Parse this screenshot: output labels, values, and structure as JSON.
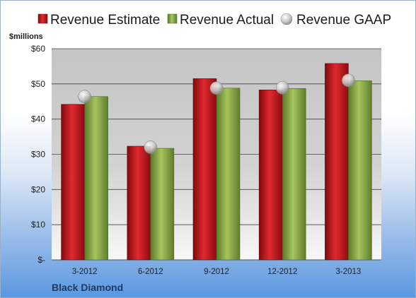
{
  "chart_data": {
    "type": "bar",
    "categories": [
      "3-2012",
      "6-2012",
      "9-2012",
      "12-2012",
      "3-2013"
    ],
    "series": [
      {
        "name": "Revenue Estimate",
        "kind": "bar",
        "color": "#c8141c",
        "values": [
          44.2,
          32.3,
          51.5,
          48.3,
          55.8
        ]
      },
      {
        "name": "Revenue Actual",
        "kind": "bar",
        "color": "#8fb04a",
        "values": [
          46.4,
          31.7,
          48.8,
          48.7,
          50.9
        ]
      },
      {
        "name": "Revenue GAAP",
        "kind": "marker",
        "color": "#c0c0c0",
        "values": [
          46.4,
          32.0,
          48.8,
          48.9,
          51.0
        ]
      }
    ],
    "ylabel": "$millions",
    "ylim": [
      0,
      60
    ],
    "yticks": [
      0,
      10,
      20,
      30,
      40,
      50,
      60
    ],
    "ytick_labels": [
      "$-",
      "$10",
      "$20",
      "$30",
      "$40",
      "$50",
      "$60"
    ],
    "grid": true,
    "legend_position": "top",
    "company": "Black Diamond"
  }
}
